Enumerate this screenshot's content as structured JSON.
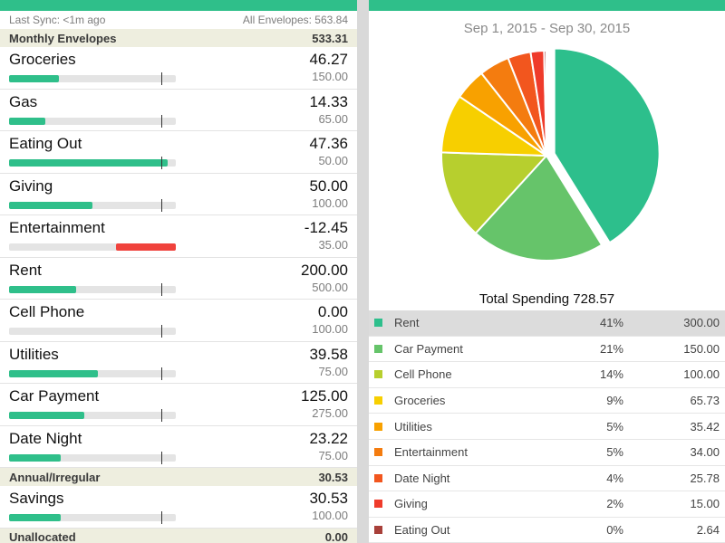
{
  "left": {
    "status": {
      "last_sync": "Last Sync: <1m ago",
      "all_envelopes": "All Envelopes: 563.84"
    },
    "monthly_header": {
      "label": "Monthly Envelopes",
      "total": "533.31"
    },
    "monthly_envelopes": [
      {
        "name": "Groceries",
        "amount": "46.27",
        "budget": "150.00",
        "fill": 0.3,
        "over": false
      },
      {
        "name": "Gas",
        "amount": "14.33",
        "budget": "65.00",
        "fill": 0.22,
        "over": false
      },
      {
        "name": "Eating Out",
        "amount": "47.36",
        "budget": "50.00",
        "fill": 0.95,
        "over": false
      },
      {
        "name": "Giving",
        "amount": "50.00",
        "budget": "100.00",
        "fill": 0.5,
        "over": false
      },
      {
        "name": "Entertainment",
        "amount": "-12.45",
        "budget": "35.00",
        "fill": 0.36,
        "over": true
      },
      {
        "name": "Rent",
        "amount": "200.00",
        "budget": "500.00",
        "fill": 0.4,
        "over": false
      },
      {
        "name": "Cell Phone",
        "amount": "0.00",
        "budget": "100.00",
        "fill": 0.0,
        "over": false
      },
      {
        "name": "Utilities",
        "amount": "39.58",
        "budget": "75.00",
        "fill": 0.53,
        "over": false
      },
      {
        "name": "Car Payment",
        "amount": "125.00",
        "budget": "275.00",
        "fill": 0.45,
        "over": false
      },
      {
        "name": "Date Night",
        "amount": "23.22",
        "budget": "75.00",
        "fill": 0.31,
        "over": false
      }
    ],
    "annual_header": {
      "label": "Annual/Irregular",
      "total": "30.53"
    },
    "annual_envelopes": [
      {
        "name": "Savings",
        "amount": "30.53",
        "budget": "100.00",
        "fill": 0.31,
        "over": false
      }
    ],
    "unallocated": {
      "label": "Unallocated",
      "total": "0.00"
    }
  },
  "right": {
    "date_range": "Sep 1, 2015 - Sep 30, 2015",
    "total_spending": "Total Spending 728.57"
  },
  "chart_data": {
    "type": "pie",
    "title": "",
    "slices": [
      {
        "name": "Rent",
        "pct": "41%",
        "amount": "300.00",
        "value": 300.0,
        "color": "#2dbf8c"
      },
      {
        "name": "Car Payment",
        "pct": "21%",
        "amount": "150.00",
        "value": 150.0,
        "color": "#66c46a"
      },
      {
        "name": "Cell Phone",
        "pct": "14%",
        "amount": "100.00",
        "value": 100.0,
        "color": "#b7cf2e"
      },
      {
        "name": "Groceries",
        "pct": "9%",
        "amount": "65.73",
        "value": 65.73,
        "color": "#f7cf00"
      },
      {
        "name": "Utilities",
        "pct": "5%",
        "amount": "35.42",
        "value": 35.42,
        "color": "#f8a100"
      },
      {
        "name": "Entertainment",
        "pct": "5%",
        "amount": "34.00",
        "value": 34.0,
        "color": "#f47c0f"
      },
      {
        "name": "Date Night",
        "pct": "4%",
        "amount": "25.78",
        "value": 25.78,
        "color": "#f2561e"
      },
      {
        "name": "Giving",
        "pct": "2%",
        "amount": "15.00",
        "value": 15.0,
        "color": "#ef3b2b"
      },
      {
        "name": "Eating Out",
        "pct": "0%",
        "amount": "2.64",
        "value": 2.64,
        "color": "#a8403a"
      }
    ],
    "selected": "Rent"
  },
  "colors": {
    "accent": "#2fbf8a",
    "over_budget": "#f0423c",
    "header_bg": "#eeeedf"
  }
}
